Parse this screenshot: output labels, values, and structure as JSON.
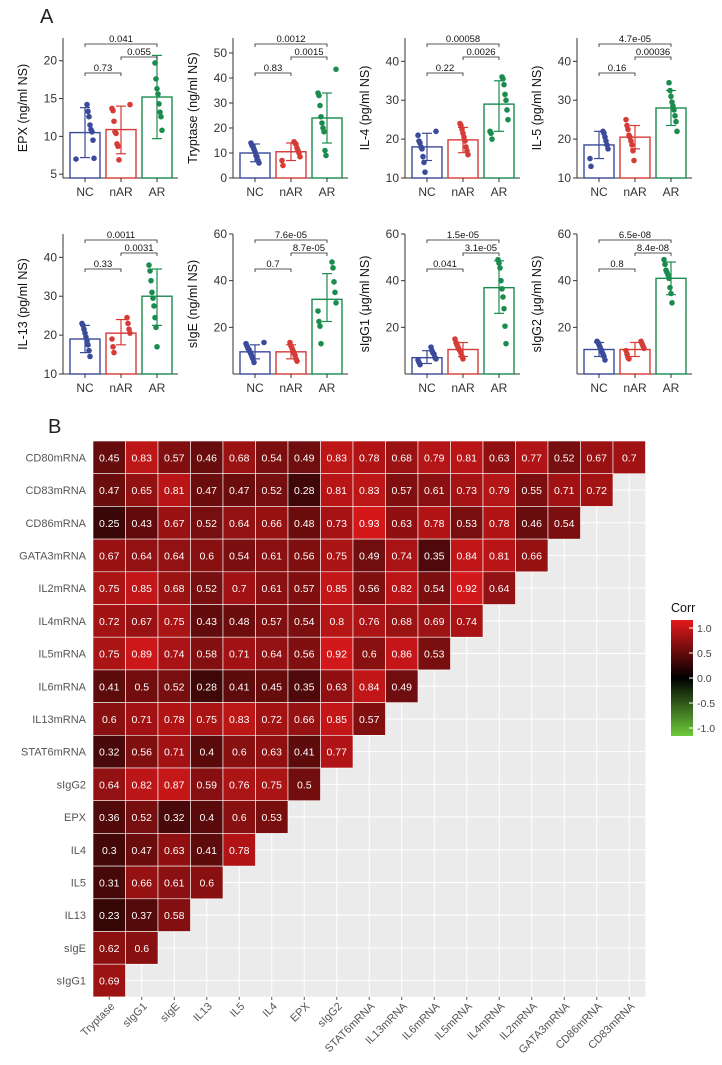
{
  "panels": {
    "a": "A",
    "b": "B"
  },
  "chart_data": [
    {
      "type": "bar",
      "subtype": "bar with error bars and jittered points",
      "groups": [
        "NC",
        "nAR",
        "AR"
      ],
      "group_colors": [
        "#3B4A9A",
        "#D63B36",
        "#1A8C4E"
      ],
      "plots": [
        {
          "id": "epx",
          "ylabel": "EPX (ng/ml NS)",
          "yticks": [
            5,
            10,
            15,
            20
          ],
          "ylim": [
            4.5,
            23
          ],
          "means": [
            10.5,
            10.9,
            15.2
          ],
          "sd": [
            [
              7.2,
              13.8
            ],
            [
              7.7,
              14.0
            ],
            [
              9.7,
              20.7
            ]
          ],
          "points": [
            [
              7.0,
              7.1,
              9.5,
              10.6,
              10.9,
              11.5,
              12.6,
              13.3,
              14.2
            ],
            [
              6.9,
              8.7,
              9.0,
              10.4,
              10.6,
              12.0,
              13.4,
              13.7,
              14.2
            ],
            [
              10.8,
              12.6,
              13.2,
              14.3,
              15.6,
              16.3,
              17.6,
              19.7
            ]
          ],
          "comparisons": [
            {
              "label": "0.73",
              "pair": [
                0,
                1
              ]
            },
            {
              "label": "0.055",
              "pair": [
                1,
                2
              ]
            },
            {
              "label": "0.041",
              "pair": [
                0,
                2
              ]
            }
          ]
        },
        {
          "id": "tryptase",
          "ylabel": "Tryptase (ng/ml NS)",
          "yticks": [
            0,
            10,
            20,
            30,
            40,
            50
          ],
          "ylim": [
            0,
            56
          ],
          "means": [
            10.0,
            10.5,
            24.0
          ],
          "sd": [
            [
              6.5,
              13.6
            ],
            [
              7.0,
              14.0
            ],
            [
              14.0,
              34.0
            ]
          ],
          "points": [
            [
              6.0,
              7.0,
              8.5,
              9.0,
              10.5,
              11.5,
              12.5,
              13.0,
              14.0
            ],
            [
              5.0,
              7.0,
              8.5,
              10.0,
              11.0,
              12.0,
              13.5,
              14.0,
              14.5
            ],
            [
              9.0,
              11.0,
              18.5,
              20.0,
              22.0,
              24.5,
              29.0,
              33.0,
              34.0,
              43.5
            ]
          ],
          "comparisons": [
            {
              "label": "0.83",
              "pair": [
                0,
                1
              ]
            },
            {
              "label": "0.0015",
              "pair": [
                1,
                2
              ]
            },
            {
              "label": "0.0012",
              "pair": [
                0,
                2
              ]
            }
          ]
        },
        {
          "id": "il4",
          "ylabel": "IL-4 (pg/ml NS)",
          "yticks": [
            10,
            20,
            30,
            40
          ],
          "ylim": [
            10,
            46
          ],
          "means": [
            18.0,
            19.8,
            29.0
          ],
          "sd": [
            [
              14.5,
              21.5
            ],
            [
              16.5,
              23.0
            ],
            [
              22.0,
              35.0
            ]
          ],
          "points": [
            [
              11.5,
              14.0,
              15.5,
              17.5,
              18.0,
              19.0,
              19.5,
              21.0,
              22.0
            ],
            [
              16.0,
              17.0,
              18.0,
              19.5,
              20.5,
              21.5,
              22.5,
              23.5,
              24.0
            ],
            [
              20.0,
              21.5,
              22.0,
              25.0,
              27.5,
              30.0,
              31.5,
              34.0,
              35.5,
              36.0
            ]
          ],
          "comparisons": [
            {
              "label": "0.22",
              "pair": [
                0,
                1
              ]
            },
            {
              "label": "0.0026",
              "pair": [
                1,
                2
              ]
            },
            {
              "label": "0.00058",
              "pair": [
                0,
                2
              ]
            }
          ]
        },
        {
          "id": "il5",
          "ylabel": "IL-5 (pg/ml NS)",
          "yticks": [
            10,
            20,
            30,
            40
          ],
          "ylim": [
            10,
            46
          ],
          "means": [
            18.5,
            20.5,
            28.0
          ],
          "sd": [
            [
              15.0,
              22.0
            ],
            [
              17.5,
              23.5
            ],
            [
              23.5,
              32.5
            ]
          ],
          "points": [
            [
              13.0,
              15.0,
              17.5,
              18.5,
              19.5,
              20.5,
              21.5,
              22.0
            ],
            [
              14.5,
              17.0,
              18.5,
              19.5,
              20.5,
              21.0,
              22.5,
              23.5,
              25.0
            ],
            [
              22.0,
              24.5,
              26.0,
              27.5,
              28.5,
              29.5,
              31.0,
              32.5,
              34.5
            ]
          ],
          "comparisons": [
            {
              "label": "0.16",
              "pair": [
                0,
                1
              ]
            },
            {
              "label": "0.00036",
              "pair": [
                1,
                2
              ]
            },
            {
              "label": "4.7e-05",
              "pair": [
                0,
                2
              ]
            }
          ]
        },
        {
          "id": "il13",
          "ylabel": "IL-13 (pg/ml NS)",
          "yticks": [
            10,
            20,
            30,
            40
          ],
          "ylim": [
            10,
            46
          ],
          "means": [
            19.0,
            20.5,
            30.0
          ],
          "sd": [
            [
              15.5,
              22.5
            ],
            [
              17.5,
              24.0
            ],
            [
              22.5,
              37.0
            ]
          ],
          "points": [
            [
              14.5,
              16.0,
              17.5,
              18.5,
              19.5,
              20.5,
              21.5,
              22.5,
              23.0
            ],
            [
              15.5,
              17.0,
              19.0,
              20.5,
              21.5,
              23.0,
              24.5
            ],
            [
              17.0,
              22.0,
              24.5,
              27.5,
              29.5,
              31.0,
              34.0,
              36.5,
              38.0
            ]
          ],
          "comparisons": [
            {
              "label": "0.33",
              "pair": [
                0,
                1
              ]
            },
            {
              "label": "0.0031",
              "pair": [
                1,
                2
              ]
            },
            {
              "label": "0.0011",
              "pair": [
                0,
                2
              ]
            }
          ]
        },
        {
          "id": "sige",
          "ylabel": "sIgE (ng/ml NS)",
          "yticks": [
            20,
            40,
            60
          ],
          "ylim": [
            0,
            60
          ],
          "means": [
            9.5,
            9.5,
            32.0
          ],
          "sd": [
            [
              6.5,
              12.5
            ],
            [
              6.5,
              12.5
            ],
            [
              22.5,
              43.0
            ]
          ],
          "points": [
            [
              5.0,
              6.5,
              7.5,
              8.5,
              9.5,
              10.5,
              11.0,
              12.0,
              13.0,
              13.5
            ],
            [
              5.5,
              6.5,
              8.0,
              9.0,
              10.0,
              11.0,
              12.0,
              13.5
            ],
            [
              13.0,
              20.5,
              22.5,
              27.0,
              30.5,
              35.0,
              39.5,
              45.5,
              48.0
            ]
          ],
          "comparisons": [
            {
              "label": "0.7",
              "pair": [
                0,
                1
              ]
            },
            {
              "label": "8.7e-05",
              "pair": [
                1,
                2
              ]
            },
            {
              "label": "7.6e-05",
              "pair": [
                0,
                2
              ]
            }
          ]
        },
        {
          "id": "sigg1",
          "ylabel": "sIgG1 (μg/ml NS)",
          "yticks": [
            20,
            40,
            60
          ],
          "ylim": [
            0,
            60
          ],
          "means": [
            7.0,
            10.5,
            37.0
          ],
          "sd": [
            [
              4.5,
              10.0
            ],
            [
              7.5,
              13.5
            ],
            [
              26.0,
              48.5
            ]
          ],
          "points": [
            [
              4.0,
              5.0,
              6.0,
              6.5,
              7.0,
              8.5,
              9.0,
              10.0,
              11.5
            ],
            [
              6.5,
              7.5,
              9.0,
              10.0,
              10.5,
              11.5,
              12.5,
              13.5,
              15.0
            ],
            [
              13.0,
              20.5,
              28.0,
              33.0,
              36.5,
              40.0,
              45.5,
              47.5,
              49.0
            ]
          ],
          "comparisons": [
            {
              "label": "0.041",
              "pair": [
                0,
                1
              ]
            },
            {
              "label": "3.1e-05",
              "pair": [
                1,
                2
              ]
            },
            {
              "label": "1.5e-05",
              "pair": [
                0,
                2
              ]
            }
          ]
        },
        {
          "id": "sigg2",
          "ylabel": "sIgG2 (μg/ml NS)",
          "yticks": [
            20,
            40,
            60
          ],
          "ylim": [
            0,
            60
          ],
          "means": [
            10.5,
            10.5,
            41.0
          ],
          "sd": [
            [
              7.5,
              13.5
            ],
            [
              7.5,
              13.5
            ],
            [
              34.0,
              48.0
            ]
          ],
          "points": [
            [
              6.0,
              7.5,
              8.5,
              9.5,
              10.5,
              11.5,
              12.5,
              13.5,
              14.0
            ],
            [
              6.5,
              7.0,
              8.5,
              10.0,
              11.0,
              12.0,
              13.0,
              14.0
            ],
            [
              30.5,
              34.5,
              37.0,
              41.0,
              42.5,
              43.5,
              44.5,
              47.0,
              49.0
            ]
          ],
          "comparisons": [
            {
              "label": "0.8",
              "pair": [
                0,
                1
              ]
            },
            {
              "label": "8.4e-08",
              "pair": [
                1,
                2
              ]
            },
            {
              "label": "6.5e-08",
              "pair": [
                0,
                2
              ]
            }
          ]
        }
      ]
    },
    {
      "type": "heatmap",
      "subtype": "lower-triangle correlation matrix",
      "rows": [
        "CD80mRNA",
        "CD83mRNA",
        "CD86mRNA",
        "GATA3mRNA",
        "IL2mRNA",
        "IL4mRNA",
        "IL5mRNA",
        "IL6mRNA",
        "IL13mRNA",
        "STAT6mRNA",
        "sIgG2",
        "EPX",
        "IL4",
        "IL5",
        "IL13",
        "sIgE",
        "sIgG1"
      ],
      "columns": [
        "Tryptase",
        "sIgG1",
        "sIgE",
        "IL13",
        "IL5",
        "IL4",
        "EPX",
        "sIgG2",
        "STAT6mRNA",
        "IL13mRNA",
        "IL6mRNA",
        "IL5mRNA",
        "IL4mRNA",
        "IL2mRNA",
        "GATA3mRNA",
        "CD86mRNA",
        "CD83mRNA"
      ],
      "values": [
        [
          0.45,
          0.83,
          0.57,
          0.46,
          0.68,
          0.54,
          0.49,
          0.83,
          0.78,
          0.68,
          0.79,
          0.81,
          0.63,
          0.77,
          0.52,
          0.67,
          0.7
        ],
        [
          0.47,
          0.65,
          0.81,
          0.47,
          0.47,
          0.52,
          0.28,
          0.81,
          0.83,
          0.57,
          0.61,
          0.73,
          0.79,
          0.55,
          0.71,
          0.72
        ],
        [
          0.25,
          0.43,
          0.67,
          0.52,
          0.64,
          0.66,
          0.48,
          0.73,
          0.93,
          0.63,
          0.78,
          0.53,
          0.78,
          0.46,
          0.54
        ],
        [
          0.67,
          0.64,
          0.64,
          0.6,
          0.54,
          0.61,
          0.56,
          0.75,
          0.49,
          0.74,
          0.35,
          0.84,
          0.81,
          0.66
        ],
        [
          0.75,
          0.85,
          0.68,
          0.52,
          0.7,
          0.61,
          0.57,
          0.85,
          0.56,
          0.82,
          0.54,
          0.92,
          0.64
        ],
        [
          0.72,
          0.67,
          0.75,
          0.43,
          0.48,
          0.57,
          0.54,
          0.8,
          0.76,
          0.68,
          0.69,
          0.74
        ],
        [
          0.75,
          0.89,
          0.74,
          0.58,
          0.71,
          0.64,
          0.56,
          0.92,
          0.6,
          0.86,
          0.53
        ],
        [
          0.41,
          0.5,
          0.52,
          0.28,
          0.41,
          0.45,
          0.35,
          0.63,
          0.84,
          0.49
        ],
        [
          0.6,
          0.71,
          0.78,
          0.75,
          0.83,
          0.72,
          0.66,
          0.85,
          0.57
        ],
        [
          0.32,
          0.56,
          0.71,
          0.4,
          0.6,
          0.63,
          0.41,
          0.77
        ],
        [
          0.64,
          0.82,
          0.87,
          0.59,
          0.76,
          0.75,
          0.5
        ],
        [
          0.36,
          0.52,
          0.32,
          0.4,
          0.6,
          0.53
        ],
        [
          0.3,
          0.47,
          0.63,
          0.41,
          0.78
        ],
        [
          0.31,
          0.66,
          0.61,
          0.6
        ],
        [
          0.23,
          0.37,
          0.58
        ],
        [
          0.62,
          0.6
        ],
        [
          0.69
        ]
      ],
      "legend": {
        "title": "Corr",
        "ticks": [
          "1.0",
          "0.5",
          "0.0",
          "-0.5",
          "-1.0"
        ],
        "range": [
          -1,
          1
        ],
        "colors": {
          "low": "#6FCB3A",
          "mid": "#000000",
          "high": "#E41A1C"
        }
      }
    }
  ]
}
